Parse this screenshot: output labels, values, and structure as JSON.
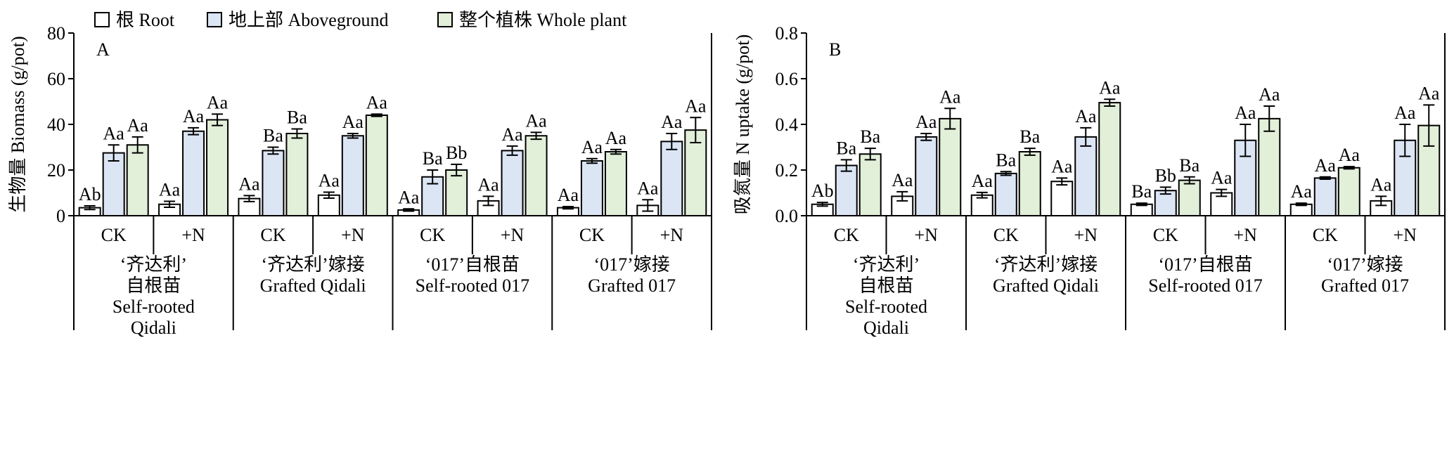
{
  "legend": {
    "items": [
      {
        "label": "根 Root",
        "color": "#ffffff"
      },
      {
        "label": "地上部 Aboveground",
        "color": "#dbe5f4"
      },
      {
        "label": "整个植株 Whole plant",
        "color": "#e2efd9"
      }
    ]
  },
  "groups": {
    "n_labels": [
      "CK",
      "+N",
      "CK",
      "+N",
      "CK",
      "+N",
      "CK",
      "+N"
    ],
    "rootstocks": [
      {
        "lines": [
          "‘齐达利’",
          "自根苗",
          "Self-rooted",
          "Qidali"
        ]
      },
      {
        "lines": [
          "‘齐达利’嫁接",
          "Grafted Qidali"
        ]
      },
      {
        "lines": [
          "‘017’自根苗",
          "Self-rooted 017"
        ]
      },
      {
        "lines": [
          "‘017’嫁接",
          "Grafted 017"
        ]
      }
    ]
  },
  "chart_data": [
    {
      "type": "bar",
      "panel_label": "A",
      "title": "",
      "ylabel": "生物量 Biomass (g/pot)",
      "ylim": [
        0,
        80
      ],
      "yticks": [
        0,
        20,
        40,
        60,
        80
      ],
      "categories": [
        "CK",
        "+N",
        "CK",
        "+N",
        "CK",
        "+N",
        "CK",
        "+N"
      ],
      "series": [
        {
          "name": "根 Root",
          "values": [
            3.5,
            5.0,
            7.5,
            9.0,
            2.5,
            6.5,
            3.5,
            4.5
          ],
          "errors": [
            0.8,
            1.3,
            1.3,
            1.3,
            0.5,
            2.0,
            0.5,
            2.5
          ],
          "labels": [
            "Ab",
            "Aa",
            "Aa",
            "Aa",
            "Aa",
            "Aa",
            "Aa",
            "Aa"
          ]
        },
        {
          "name": "地上部 Aboveground",
          "values": [
            27.5,
            37.0,
            28.5,
            35.0,
            17.0,
            28.5,
            24.0,
            32.5
          ],
          "errors": [
            3.5,
            1.5,
            1.5,
            1.0,
            3.0,
            2.0,
            1.0,
            3.5
          ],
          "labels": [
            "Aa",
            "Aa",
            "Ba",
            "Aa",
            "Ba",
            "Aa",
            "Aa",
            "Aa"
          ]
        },
        {
          "name": "整个植株 Whole plant",
          "values": [
            31.0,
            42.0,
            36.0,
            44.0,
            20.0,
            35.0,
            28.0,
            37.5
          ],
          "errors": [
            3.5,
            2.5,
            2.0,
            0.5,
            2.5,
            1.5,
            1.0,
            5.5
          ],
          "labels": [
            "Aa",
            "Aa",
            "Ba",
            "Aa",
            "Bb",
            "Aa",
            "Aa",
            "Aa"
          ]
        }
      ]
    },
    {
      "type": "bar",
      "panel_label": "B",
      "title": "",
      "ylabel": "吸氮量 N uptake (g/pot)",
      "ylim": [
        0,
        0.8
      ],
      "yticks": [
        "0.0",
        "0.2",
        "0.4",
        "0.6",
        "0.8"
      ],
      "categories": [
        "CK",
        "+N",
        "CK",
        "+N",
        "CK",
        "+N",
        "CK",
        "+N"
      ],
      "series": [
        {
          "name": "根 Root",
          "values": [
            0.05,
            0.085,
            0.09,
            0.15,
            0.05,
            0.1,
            0.05,
            0.065
          ],
          "errors": [
            0.008,
            0.02,
            0.012,
            0.015,
            0.005,
            0.015,
            0.005,
            0.02
          ],
          "labels": [
            "Ab",
            "Aa",
            "Aa",
            "Aa",
            "Ba",
            "Aa",
            "Aa",
            "Aa"
          ]
        },
        {
          "name": "地上部 Aboveground",
          "values": [
            0.22,
            0.345,
            0.185,
            0.345,
            0.11,
            0.33,
            0.165,
            0.33
          ],
          "errors": [
            0.025,
            0.015,
            0.008,
            0.04,
            0.015,
            0.07,
            0.005,
            0.07
          ],
          "labels": [
            "Ba",
            "Aa",
            "Ba",
            "Aa",
            "Bb",
            "Aa",
            "Aa",
            "Aa"
          ]
        },
        {
          "name": "整个植株 Whole plant",
          "values": [
            0.27,
            0.425,
            0.28,
            0.495,
            0.155,
            0.425,
            0.21,
            0.395
          ],
          "errors": [
            0.025,
            0.045,
            0.015,
            0.015,
            0.015,
            0.055,
            0.005,
            0.09
          ],
          "labels": [
            "Ba",
            "Aa",
            "Ba",
            "Aa",
            "Ba",
            "Aa",
            "Aa",
            "Aa"
          ]
        }
      ]
    }
  ]
}
